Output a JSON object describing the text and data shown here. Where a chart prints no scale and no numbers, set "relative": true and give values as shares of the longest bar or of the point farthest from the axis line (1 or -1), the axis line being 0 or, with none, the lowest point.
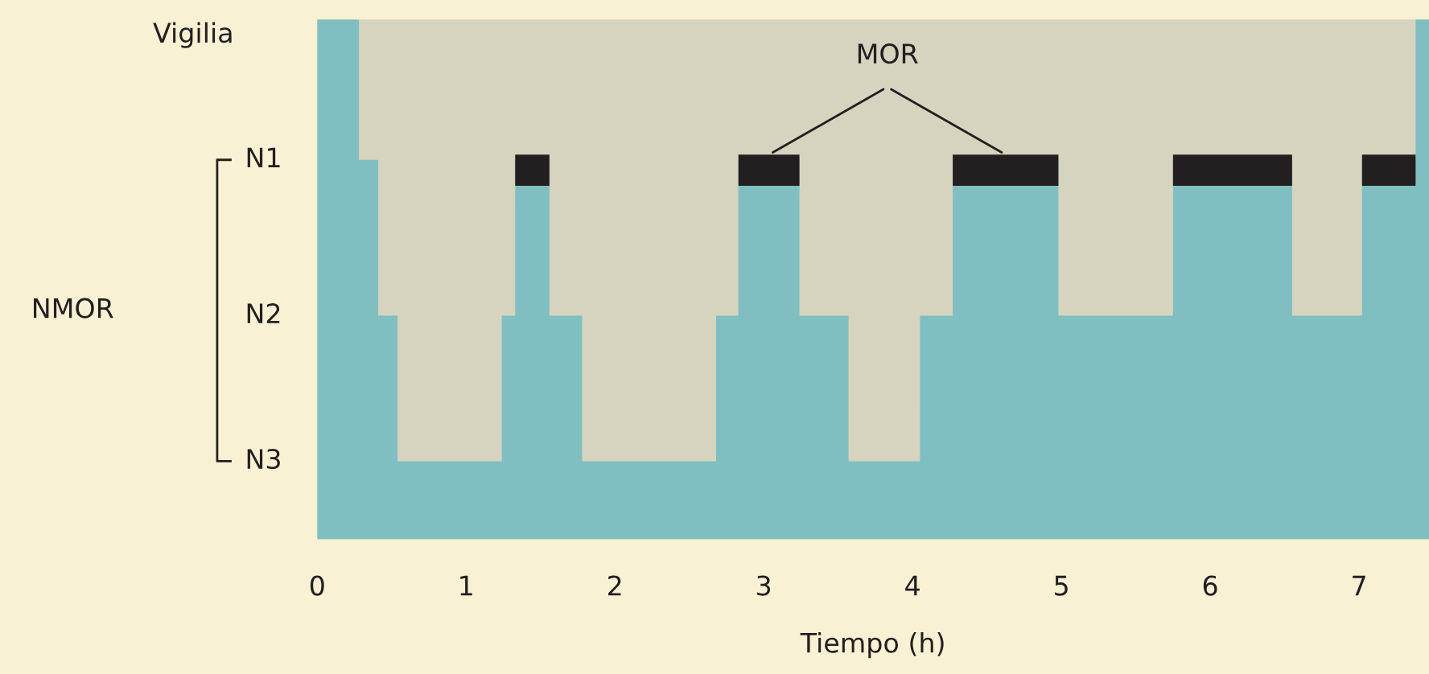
{
  "chart_data": {
    "type": "area",
    "xlabel": "Tiempo (h)",
    "relative": true,
    "series": [
      {
        "color": "#7fbfc1",
        "x": [
          0,
          0.28,
          0.41,
          0.54,
          1.24,
          1.33,
          1.56,
          1.78,
          2.68,
          2.83,
          3.24,
          3.57,
          4.05,
          4.27,
          4.98,
          5.75,
          6.55,
          7.02,
          7.38,
          7.47
        ],
        "values": [
          1,
          0.73,
          0.43,
          0.15,
          0.43,
          0.73,
          0.43,
          0.15,
          0.43,
          0.73,
          0.43,
          0.15,
          0.43,
          0.73,
          0.43,
          0.73,
          0.43,
          0.73,
          1,
          1
        ]
      },
      {
        "type": "line",
        "name": "MOR",
        "color": "#231f20",
        "x": [
          1.33,
          1.56
        ],
        "values": [
          0.71,
          0.71
        ]
      },
      {
        "type": "line",
        "color": "#231f20",
        "x": [
          2.83,
          3.24
        ],
        "values": [
          0.71,
          0.71
        ]
      },
      {
        "type": "line",
        "color": "#231f20",
        "x": [
          4.27,
          4.98
        ],
        "values": [
          0.71,
          0.71
        ]
      },
      {
        "type": "line",
        "color": "#231f20",
        "x": [
          5.75,
          6.55
        ],
        "values": [
          0.71,
          0.71
        ]
      },
      {
        "type": "line",
        "color": "#231f20",
        "x": [
          7.02,
          7.38
        ],
        "values": [
          0.71,
          0.71
        ]
      }
    ],
    "xlim": [
      0,
      7.47
    ],
    "xticks": [
      0,
      1,
      2,
      3,
      4,
      5,
      6,
      7
    ],
    "annotations": [
      "Vigilia",
      "N1",
      "N2",
      "N3",
      "NMOR"
    ],
    "grid": false,
    "legend": false
  }
}
